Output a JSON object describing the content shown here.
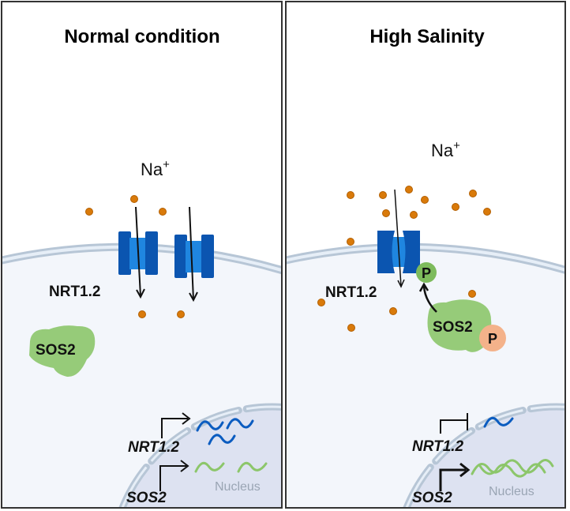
{
  "panels": [
    {
      "title": "Normal condition",
      "ion_label": "Na",
      "ion_charge": "+",
      "transporter_label": "NRT1.2",
      "kinase_label": "SOS2",
      "genes": [
        {
          "name": "NRT1.2",
          "state": "expressed"
        },
        {
          "name": "SOS2",
          "state": "expressed"
        }
      ],
      "nucleus_label": "Nucleus"
    },
    {
      "title": "High Salinity",
      "ion_label": "Na",
      "ion_charge": "+",
      "transporter_label": "NRT1.2",
      "kinase_label": "SOS2",
      "phospho_label": "P",
      "kinase_phospho_label": "P",
      "genes": [
        {
          "name": "NRT1.2",
          "state": "repressed"
        },
        {
          "name": "SOS2",
          "state": "upregulated"
        }
      ],
      "nucleus_label": "Nucleus"
    }
  ],
  "colors": {
    "transporter_dark": "#0b55b0",
    "transporter_light": "#1f86e0",
    "sodium_ion": "#d97a0a",
    "sos2": "#8cc66a",
    "phospho_green": "#7dbb5c",
    "phospho_orange": "#f4b28a",
    "mrna_blue": "#0b5cc0",
    "mrna_green": "#8cc66a",
    "nucleus_fill": "#dde2f1",
    "membrane": "#b7c6d6",
    "cytoplasm": "#f3f6fb"
  }
}
